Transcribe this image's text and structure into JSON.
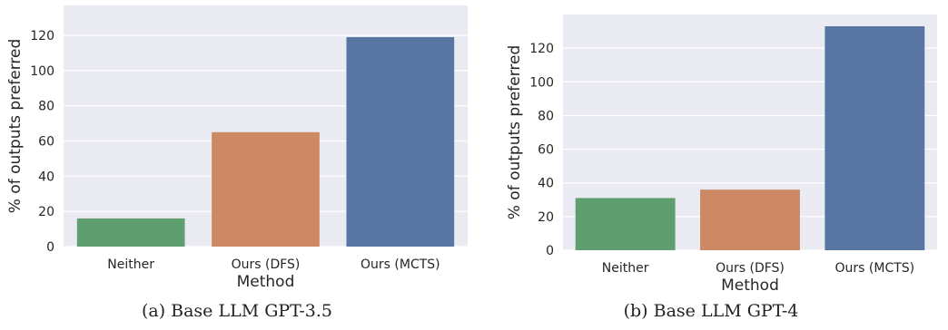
{
  "chart_data": [
    {
      "type": "bar",
      "categories": [
        "Neither",
        "Ours (DFS)",
        "Ours (MCTS)"
      ],
      "values": [
        16,
        65,
        119
      ],
      "colors": [
        "#5f9e6e",
        "#cc8963",
        "#5975a4"
      ],
      "xlabel": "Method",
      "ylabel": "% of outputs preferred",
      "yticks": [
        0,
        20,
        40,
        60,
        80,
        100,
        120
      ],
      "ylim": [
        0,
        137
      ],
      "grid": true,
      "background": "#eaeaf2",
      "caption": "(a) Base LLM GPT-3.5"
    },
    {
      "type": "bar",
      "categories": [
        "Neither",
        "Ours (DFS)",
        "Ours (MCTS)"
      ],
      "values": [
        31,
        36,
        133
      ],
      "colors": [
        "#5f9e6e",
        "#cc8963",
        "#5975a4"
      ],
      "xlabel": "Method",
      "ylabel": "% of outputs preferred",
      "yticks": [
        0,
        20,
        40,
        60,
        80,
        100,
        120
      ],
      "ylim": [
        0,
        140
      ],
      "grid": true,
      "background": "#eaeaf2",
      "caption": "(b) Base LLM GPT-4"
    }
  ]
}
